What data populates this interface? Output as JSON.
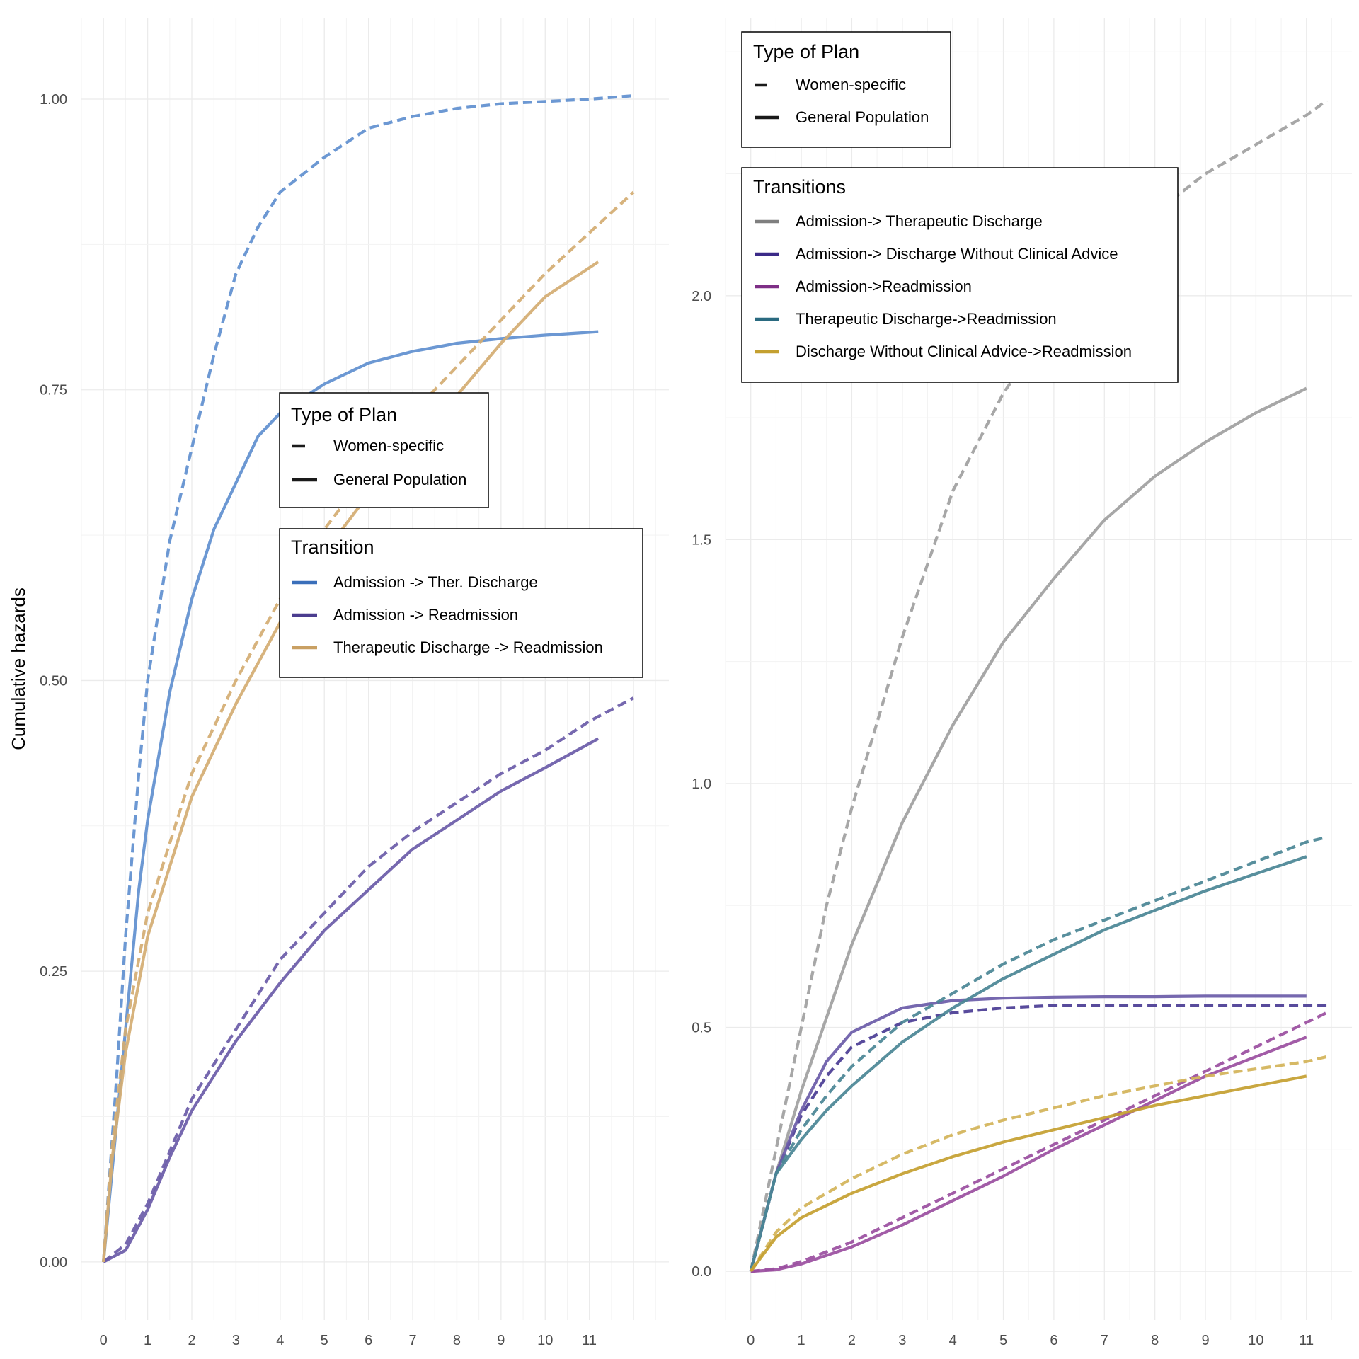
{
  "chart_data": [
    {
      "type": "line",
      "ylabel": "Cumulative hazards",
      "xlabel": "",
      "xlim": [
        -0.5,
        12.8
      ],
      "ylim": [
        -0.05,
        1.07
      ],
      "x_ticks": [
        0,
        1,
        2,
        3,
        4,
        5,
        6,
        7,
        8,
        9,
        10,
        11
      ],
      "y_ticks": [
        0.0,
        0.25,
        0.5,
        0.75,
        1.0
      ],
      "y_tick_labels": [
        "0.00",
        "0.25",
        "0.50",
        "0.75",
        "1.00"
      ],
      "grid": true,
      "legends": [
        {
          "title": "Type of Plan",
          "position": "center",
          "items": [
            {
              "label": "Women-specific",
              "linestyle": "dashed"
            },
            {
              "label": "General Population",
              "linestyle": "solid"
            }
          ]
        },
        {
          "title": "Transition",
          "position": "center-right",
          "items": [
            {
              "label": "Admission -> Ther. Discharge",
              "color": "#3a6fba"
            },
            {
              "label": "Admission -> Readmission",
              "color": "#4b3d8f"
            },
            {
              "label": "Therapeutic Discharge -> Readmission",
              "color": "#c9a063"
            }
          ]
        }
      ],
      "series": [
        {
          "name": "Admission -> Ther. Discharge",
          "plan": "Women-specific",
          "linestyle": "dashed",
          "color": "#5f8fcf",
          "x": [
            0,
            0.3,
            0.5,
            0.8,
            1,
            1.5,
            2,
            2.5,
            3,
            3.5,
            4,
            5,
            6,
            7,
            8,
            9,
            10,
            11,
            12.0
          ],
          "y": [
            0,
            0.16,
            0.28,
            0.42,
            0.5,
            0.62,
            0.7,
            0.78,
            0.85,
            0.89,
            0.92,
            0.95,
            0.975,
            0.985,
            0.992,
            0.996,
            0.998,
            1.0,
            1.003
          ]
        },
        {
          "name": "Admission -> Ther. Discharge",
          "plan": "General Population",
          "linestyle": "solid",
          "color": "#5f8fcf",
          "x": [
            0,
            0.3,
            0.5,
            0.8,
            1,
            1.5,
            2,
            2.5,
            3,
            3.5,
            4,
            5,
            6,
            7,
            8,
            9,
            10,
            11.2
          ],
          "y": [
            0,
            0.12,
            0.2,
            0.32,
            0.38,
            0.49,
            0.57,
            0.63,
            0.67,
            0.71,
            0.73,
            0.755,
            0.773,
            0.783,
            0.79,
            0.794,
            0.797,
            0.8
          ]
        },
        {
          "name": "Admission -> Readmission",
          "plan": "Women-specific",
          "linestyle": "dashed",
          "color": "#6a5ba8",
          "x": [
            0,
            0.5,
            1,
            1.5,
            2,
            3,
            4,
            5,
            6,
            7,
            8,
            9,
            10,
            11,
            12.0
          ],
          "y": [
            0,
            0.015,
            0.05,
            0.095,
            0.14,
            0.2,
            0.26,
            0.3,
            0.34,
            0.37,
            0.395,
            0.42,
            0.44,
            0.465,
            0.485
          ]
        },
        {
          "name": "Admission -> Readmission",
          "plan": "General Population",
          "linestyle": "solid",
          "color": "#6a5ba8",
          "x": [
            0,
            0.5,
            1,
            1.5,
            2,
            3,
            4,
            5,
            6,
            7,
            8,
            9,
            10,
            11.2
          ],
          "y": [
            0,
            0.01,
            0.045,
            0.09,
            0.13,
            0.19,
            0.24,
            0.285,
            0.32,
            0.355,
            0.38,
            0.405,
            0.425,
            0.45
          ]
        },
        {
          "name": "Therapeutic Discharge -> Readmission",
          "plan": "Women-specific",
          "linestyle": "dashed",
          "color": "#d4ad72",
          "x": [
            0,
            0.2,
            0.5,
            1,
            1.5,
            2,
            3,
            4,
            5,
            6,
            7,
            8,
            9,
            10,
            11,
            12.0
          ],
          "y": [
            0,
            0.1,
            0.2,
            0.3,
            0.36,
            0.42,
            0.5,
            0.57,
            0.63,
            0.68,
            0.73,
            0.77,
            0.81,
            0.85,
            0.885,
            0.92
          ]
        },
        {
          "name": "Therapeutic Discharge -> Readmission",
          "plan": "General Population",
          "linestyle": "solid",
          "color": "#d4ad72",
          "x": [
            0,
            0.2,
            0.5,
            1,
            1.5,
            2,
            3,
            4,
            5,
            6,
            7,
            8,
            9,
            10,
            11.2
          ],
          "y": [
            0,
            0.09,
            0.18,
            0.28,
            0.34,
            0.4,
            0.48,
            0.55,
            0.61,
            0.66,
            0.7,
            0.745,
            0.79,
            0.83,
            0.86
          ]
        }
      ]
    },
    {
      "type": "line",
      "ylabel": "",
      "xlabel": "",
      "xlim": [
        -0.5,
        11.9
      ],
      "ylim": [
        -0.1,
        2.57
      ],
      "x_ticks": [
        0,
        1,
        2,
        3,
        4,
        5,
        6,
        7,
        8,
        9,
        10,
        11
      ],
      "y_ticks": [
        0.0,
        0.5,
        1.0,
        1.5,
        2.0
      ],
      "y_tick_labels": [
        "0.0",
        "0.5",
        "1.0",
        "1.5",
        "2.0"
      ],
      "grid": true,
      "legends": [
        {
          "title": "Type of Plan",
          "position": "top-left",
          "items": [
            {
              "label": "Women-specific",
              "linestyle": "dashed"
            },
            {
              "label": "General Population",
              "linestyle": "solid"
            }
          ]
        },
        {
          "title": "Transitions",
          "position": "top-left",
          "items": [
            {
              "label": "Admission-> Therapeutic Discharge",
              "color": "#7f7f7f"
            },
            {
              "label": "Admission-> Discharge Without Clinical Advice",
              "color": "#3b2a88"
            },
            {
              "label": "Admission->Readmission",
              "color": "#7e2f86"
            },
            {
              "label": "Therapeutic Discharge->Readmission",
              "color": "#2a6a80"
            },
            {
              "label": "Discharge Without Clinical Advice->Readmission",
              "color": "#c4a030"
            }
          ]
        }
      ],
      "series": [
        {
          "name": "Admission-> Therapeutic Discharge",
          "plan": "Women-specific",
          "linestyle": "dashed",
          "color": "#a0a0a0",
          "x": [
            0,
            0.5,
            1,
            1.5,
            2,
            3,
            4,
            5,
            6,
            7,
            8,
            9,
            10,
            11,
            11.4
          ],
          "y": [
            0,
            0.25,
            0.5,
            0.75,
            0.95,
            1.3,
            1.6,
            1.8,
            1.95,
            2.07,
            2.17,
            2.25,
            2.31,
            2.37,
            2.4
          ]
        },
        {
          "name": "Admission-> Therapeutic Discharge",
          "plan": "General Population",
          "linestyle": "solid",
          "color": "#a0a0a0",
          "x": [
            0,
            0.5,
            1,
            2,
            3,
            4,
            5,
            6,
            7,
            8,
            9,
            10,
            11
          ],
          "y": [
            0,
            0.2,
            0.37,
            0.67,
            0.92,
            1.12,
            1.29,
            1.42,
            1.54,
            1.63,
            1.7,
            1.76,
            1.81
          ]
        },
        {
          "name": "Admission-> Discharge Without Clinical Advice",
          "plan": "Women-specific",
          "linestyle": "dashed",
          "color": "#4a3c94",
          "x": [
            0,
            0.5,
            1,
            1.5,
            2,
            3,
            4,
            5,
            6,
            7,
            8,
            9,
            10,
            11,
            11.4
          ],
          "y": [
            0,
            0.2,
            0.32,
            0.4,
            0.46,
            0.51,
            0.53,
            0.54,
            0.545,
            0.545,
            0.545,
            0.545,
            0.545,
            0.545,
            0.545
          ]
        },
        {
          "name": "Admission-> Discharge Without Clinical Advice",
          "plan": "General Population",
          "linestyle": "solid",
          "color": "#6a5ba8",
          "x": [
            0,
            0.5,
            1,
            1.5,
            2,
            3,
            4,
            5,
            6,
            7,
            8,
            9,
            10,
            11
          ],
          "y": [
            0,
            0.2,
            0.33,
            0.43,
            0.49,
            0.54,
            0.555,
            0.56,
            0.562,
            0.563,
            0.563,
            0.564,
            0.564,
            0.564
          ]
        },
        {
          "name": "Admission->Readmission",
          "plan": "Women-specific",
          "linestyle": "dashed",
          "color": "#9a4ea0",
          "x": [
            0,
            0.5,
            1,
            2,
            3,
            4,
            5,
            6,
            7,
            8,
            9,
            10,
            11,
            11.4
          ],
          "y": [
            0,
            0.005,
            0.02,
            0.06,
            0.11,
            0.16,
            0.21,
            0.26,
            0.31,
            0.36,
            0.41,
            0.46,
            0.51,
            0.53
          ]
        },
        {
          "name": "Admission->Readmission",
          "plan": "General Population",
          "linestyle": "solid",
          "color": "#9a4ea0",
          "x": [
            0,
            0.5,
            1,
            2,
            3,
            4,
            5,
            6,
            7,
            8,
            9,
            10,
            11
          ],
          "y": [
            0,
            0.003,
            0.015,
            0.05,
            0.095,
            0.145,
            0.195,
            0.25,
            0.3,
            0.35,
            0.4,
            0.44,
            0.48
          ]
        },
        {
          "name": "Therapeutic Discharge->Readmission",
          "plan": "Women-specific",
          "linestyle": "dashed",
          "color": "#4a8595",
          "x": [
            0,
            0.5,
            1,
            1.5,
            2,
            3,
            4,
            5,
            6,
            7,
            8,
            9,
            10,
            11,
            11.4
          ],
          "y": [
            0,
            0.2,
            0.29,
            0.36,
            0.42,
            0.51,
            0.57,
            0.63,
            0.68,
            0.72,
            0.76,
            0.8,
            0.84,
            0.88,
            0.89
          ]
        },
        {
          "name": "Therapeutic Discharge->Readmission",
          "plan": "General Population",
          "linestyle": "solid",
          "color": "#4a8595",
          "x": [
            0,
            0.5,
            1,
            1.5,
            2,
            3,
            4,
            5,
            6,
            7,
            8,
            9,
            10,
            11
          ],
          "y": [
            0,
            0.2,
            0.27,
            0.33,
            0.38,
            0.47,
            0.54,
            0.6,
            0.65,
            0.7,
            0.74,
            0.78,
            0.815,
            0.85
          ]
        },
        {
          "name": "Discharge Without Clinical Advice->Readmission",
          "plan": "Women-specific",
          "linestyle": "dashed",
          "color": "#d2b358",
          "x": [
            0,
            0.5,
            1,
            2,
            3,
            4,
            5,
            6,
            7,
            8,
            9,
            10,
            11,
            11.4
          ],
          "y": [
            0,
            0.08,
            0.13,
            0.19,
            0.24,
            0.28,
            0.31,
            0.335,
            0.36,
            0.38,
            0.4,
            0.415,
            0.43,
            0.44
          ]
        },
        {
          "name": "Discharge Without Clinical Advice->Readmission",
          "plan": "General Population",
          "linestyle": "solid",
          "color": "#c4a030",
          "x": [
            0,
            0.5,
            1,
            2,
            3,
            4,
            5,
            6,
            7,
            8,
            9,
            10,
            11
          ],
          "y": [
            0,
            0.07,
            0.11,
            0.16,
            0.2,
            0.235,
            0.265,
            0.29,
            0.315,
            0.34,
            0.36,
            0.38,
            0.4
          ]
        }
      ]
    }
  ]
}
